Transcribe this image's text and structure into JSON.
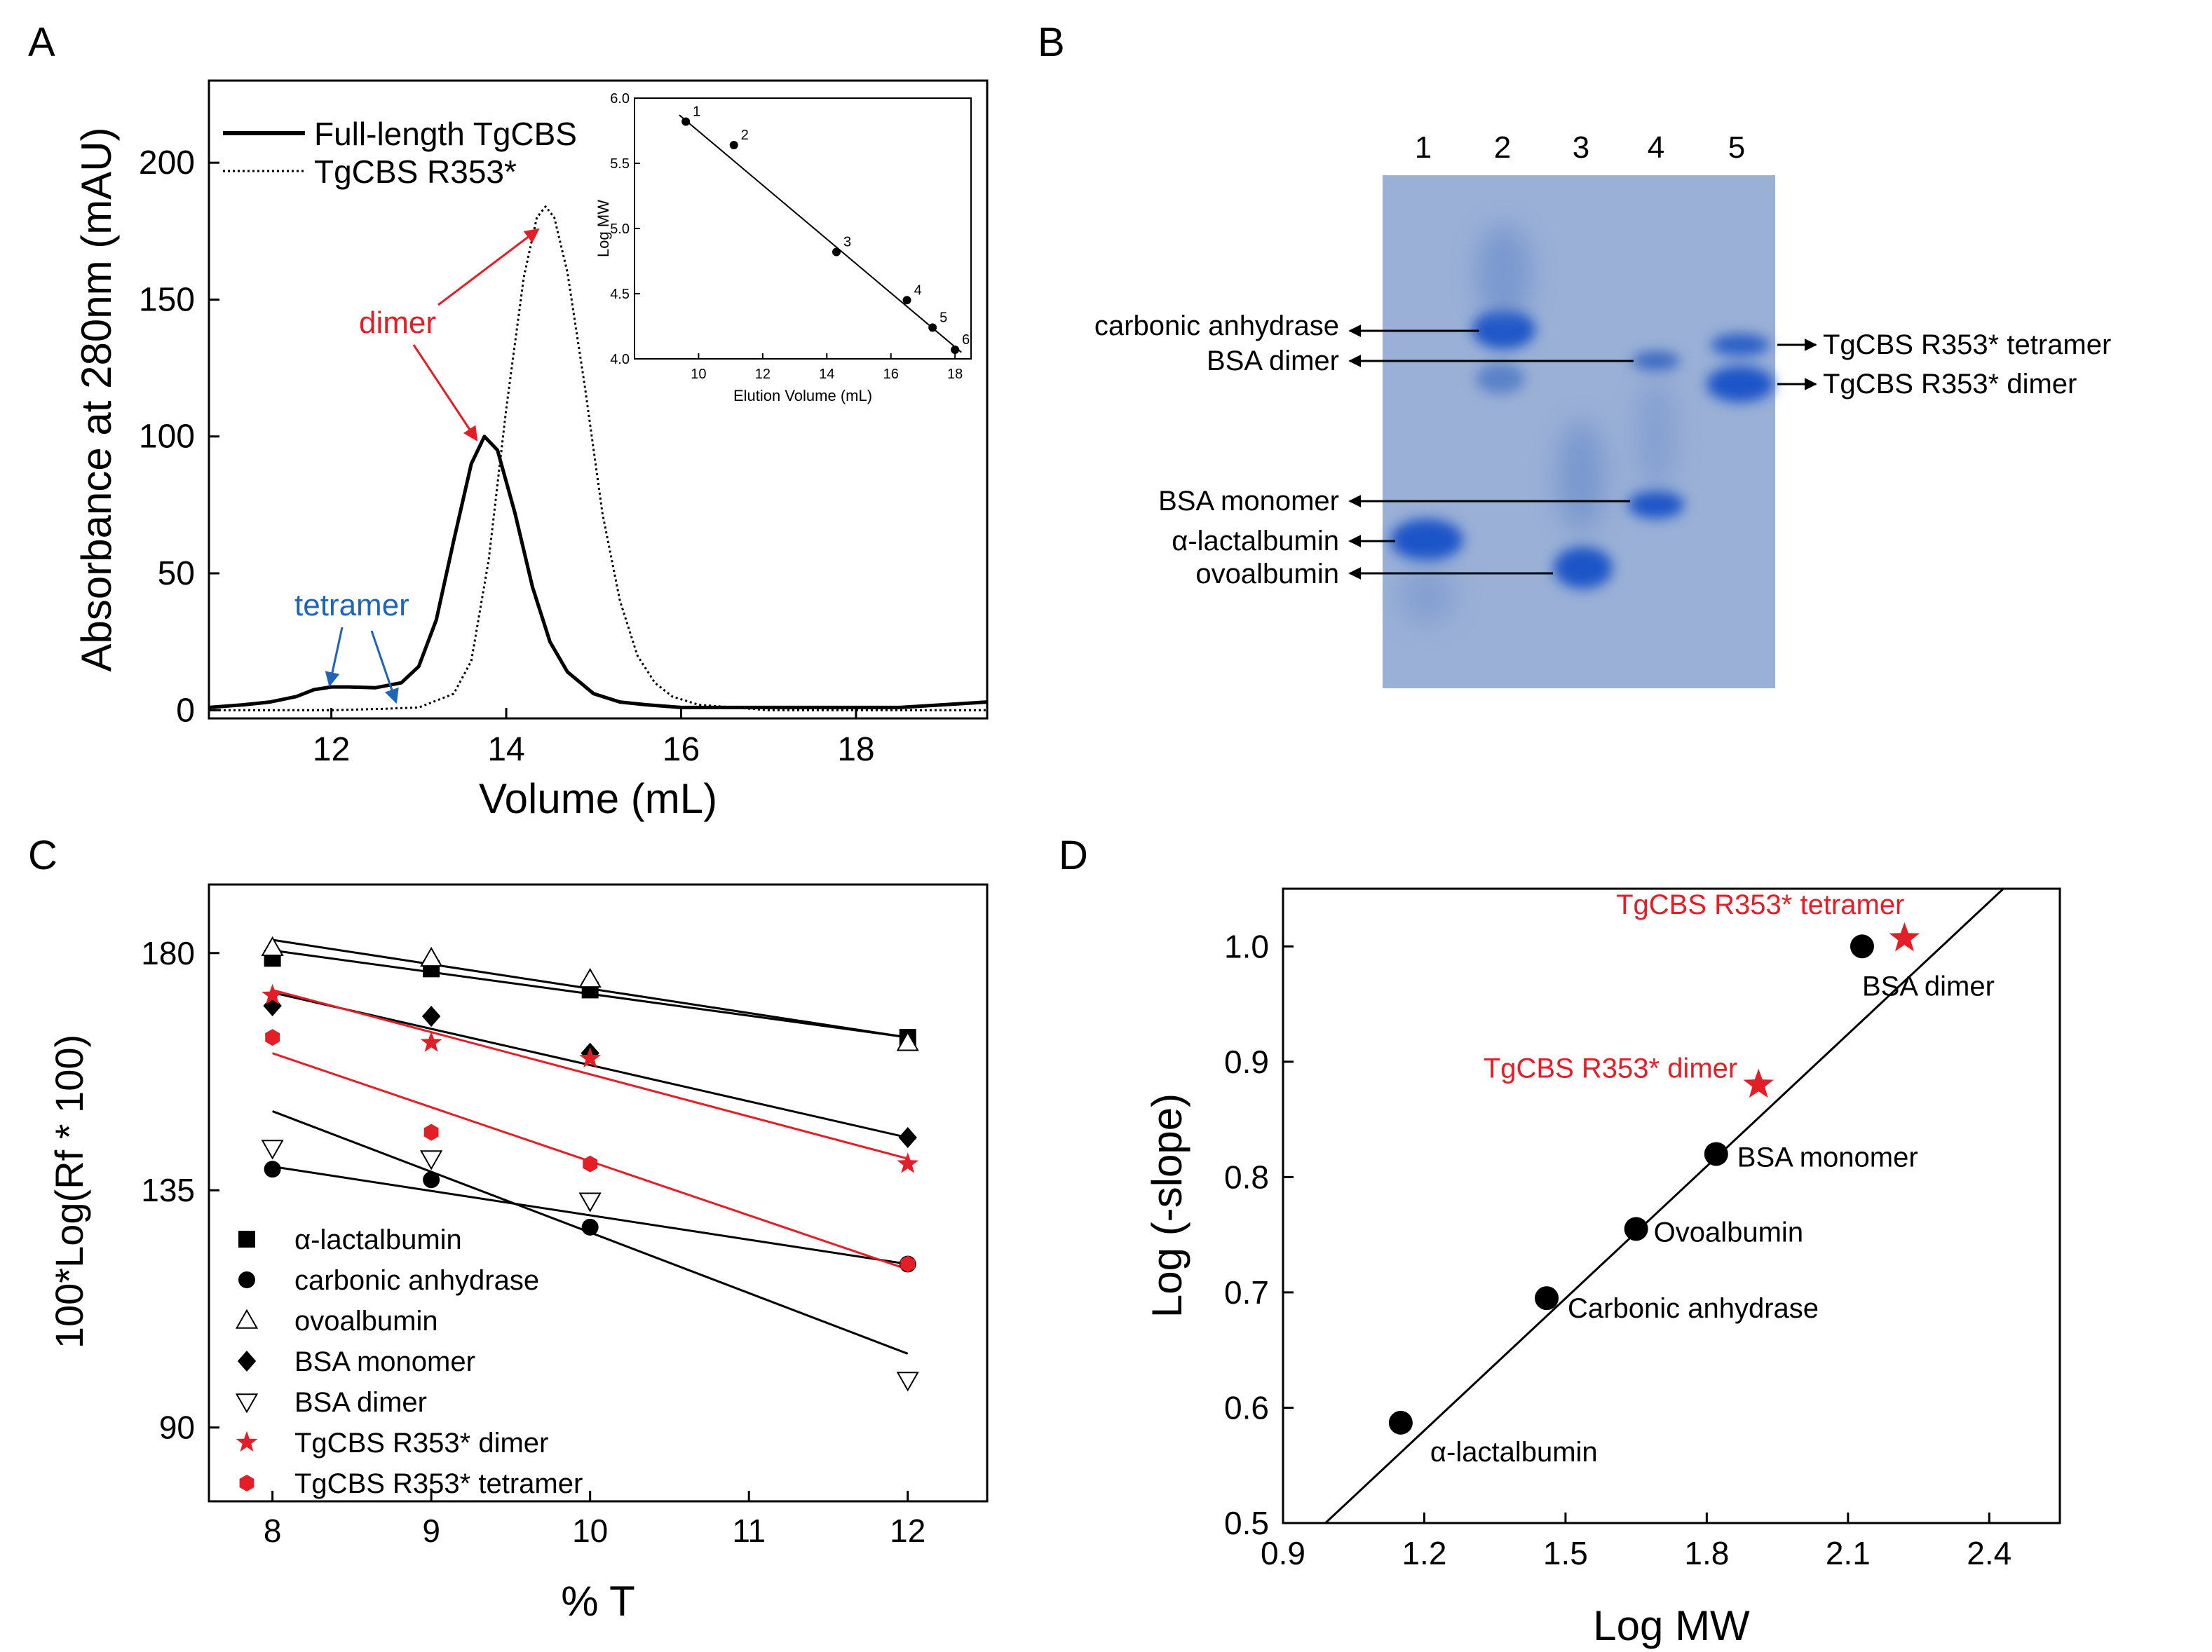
{
  "panels": {
    "A": "A",
    "B": "B",
    "C": "C",
    "D": "D"
  },
  "colors": {
    "red": "#e41e26",
    "blue": "#1e64b8",
    "gel_bg": "#9ab0d6",
    "band": "#1a55c8"
  },
  "chart_data": [
    {
      "panel": "A",
      "type": "line",
      "xlabel": "Volume (mL)",
      "ylabel": "Absorbance at 280nm (mAU)",
      "xlim": [
        10.6,
        19.5
      ],
      "ylim": [
        -3,
        230
      ],
      "xticks": [
        12,
        14,
        16,
        18
      ],
      "yticks": [
        0,
        50,
        100,
        150,
        200
      ],
      "legend_position": "top-left",
      "series": [
        {
          "name": "Full-length TgCBS",
          "style": "solid",
          "x": [
            10.6,
            11.0,
            11.3,
            11.6,
            11.8,
            12.0,
            12.2,
            12.5,
            12.8,
            13.0,
            13.2,
            13.4,
            13.6,
            13.75,
            13.9,
            14.1,
            14.3,
            14.5,
            14.7,
            15.0,
            15.3,
            15.6,
            16.0,
            16.5,
            17.0,
            17.5,
            18.0,
            18.5,
            19.0,
            19.5
          ],
          "y": [
            1,
            2,
            3,
            5,
            7.5,
            8.5,
            8.5,
            8.2,
            10,
            16,
            33,
            62,
            90,
            100,
            95,
            72,
            45,
            25,
            14,
            6,
            3,
            2,
            1,
            1,
            1,
            1,
            1,
            1,
            2,
            3
          ]
        },
        {
          "name": "TgCBS R353*",
          "style": "dotted",
          "x": [
            10.6,
            12.0,
            12.6,
            13.0,
            13.4,
            13.6,
            13.8,
            14.0,
            14.2,
            14.35,
            14.45,
            14.55,
            14.7,
            14.9,
            15.1,
            15.3,
            15.5,
            15.7,
            15.9,
            16.2,
            16.6,
            17.0,
            18.0,
            19.5
          ],
          "y": [
            0,
            0,
            0.5,
            1,
            6,
            18,
            55,
            110,
            158,
            180,
            184,
            180,
            160,
            118,
            72,
            40,
            20,
            10,
            5,
            2,
            1,
            0,
            0,
            0
          ]
        }
      ],
      "annotations": {
        "dimer": "dimer",
        "tetramer": "tetramer"
      },
      "inset": {
        "type": "scatter",
        "xlabel": "Elution Volume (mL)",
        "ylabel": "Log MW",
        "xlim": [
          8,
          18.5
        ],
        "ylim": [
          4.0,
          6.0
        ],
        "xticks": [
          10,
          12,
          14,
          16,
          18
        ],
        "yticks": [
          "4.0",
          "4.5",
          "5.0",
          "5.5",
          "6.0"
        ],
        "points": [
          {
            "label": "1",
            "x": 9.6,
            "y": 5.82
          },
          {
            "label": "2",
            "x": 11.1,
            "y": 5.64
          },
          {
            "label": "3",
            "x": 14.3,
            "y": 4.82
          },
          {
            "label": "4",
            "x": 16.5,
            "y": 4.45
          },
          {
            "label": "5",
            "x": 17.3,
            "y": 4.24
          },
          {
            "label": "6",
            "x": 18.0,
            "y": 4.07
          }
        ],
        "fit": {
          "x": [
            9.4,
            18.2
          ],
          "y": [
            5.87,
            4.05
          ]
        }
      }
    },
    {
      "panel": "C",
      "type": "scatter",
      "xlabel": "% T",
      "ylabel": "100*Log(Rf * 100)",
      "xlim": [
        7.6,
        12.5
      ],
      "ylim": [
        76,
        193
      ],
      "xticks": [
        8,
        9,
        10,
        11,
        12
      ],
      "yticks": [
        90,
        135,
        180
      ],
      "legend_position": "bottom-left",
      "series": [
        {
          "name": "α-lactalbumin",
          "marker": "square",
          "color": "black",
          "x": [
            8,
            9,
            10,
            12
          ],
          "y": [
            179,
            177,
            173,
            164
          ],
          "fit": [
            [
              8,
              180.5
            ],
            [
              12,
              164
            ]
          ]
        },
        {
          "name": "carbonic anhydrase",
          "marker": "circle",
          "color": "black",
          "x": [
            8,
            9,
            10,
            12
          ],
          "y": [
            139,
            137,
            128,
            121
          ],
          "fit": [
            [
              8,
              139.5
            ],
            [
              12,
              121
            ]
          ]
        },
        {
          "name": "ovoalbumin",
          "marker": "triangle-up",
          "color": "black",
          "x": [
            8,
            9,
            10,
            12
          ],
          "y": [
            181,
            179,
            175,
            163
          ],
          "fit": [
            [
              8,
              182.5
            ],
            [
              12,
              164
            ]
          ]
        },
        {
          "name": "BSA monomer",
          "marker": "diamond",
          "color": "black",
          "x": [
            8,
            9,
            10,
            12
          ],
          "y": [
            170,
            168,
            161,
            145
          ],
          "fit": [
            [
              8,
              172.5
            ],
            [
              12,
              145
            ]
          ]
        },
        {
          "name": "BSA dimer",
          "marker": "triangle-down",
          "color": "black",
          "x": [
            8,
            9,
            10,
            12
          ],
          "y": [
            143,
            141,
            133,
            99
          ],
          "fit": [
            [
              8,
              150
            ],
            [
              12,
              104
            ]
          ]
        },
        {
          "name": "TgCBS R353* dimer",
          "marker": "star",
          "color": "red",
          "x": [
            8,
            9,
            10,
            12
          ],
          "y": [
            172,
            163,
            160,
            140
          ],
          "fit": [
            [
              8,
              173
            ],
            [
              12,
              141
            ]
          ]
        },
        {
          "name": "TgCBS R353* tetramer",
          "marker": "hexagon",
          "color": "red",
          "x": [
            8,
            9,
            10,
            12
          ],
          "y": [
            164,
            146,
            140,
            121
          ],
          "fit": [
            [
              8,
              161
            ],
            [
              12,
              120
            ]
          ]
        }
      ]
    },
    {
      "panel": "D",
      "type": "scatter",
      "xlabel": "Log MW",
      "ylabel": "Log (-slope)",
      "xlim": [
        0.9,
        2.55
      ],
      "ylim": [
        0.5,
        1.05
      ],
      "xticks": [
        "0.9",
        "1.2",
        "1.5",
        "1.8",
        "2.1",
        "2.4"
      ],
      "yticks": [
        "0.5",
        "0.6",
        "0.7",
        "0.8",
        "0.9",
        "1.0"
      ],
      "fit": {
        "x": [
          0.99,
          2.43
        ],
        "y": [
          0.5,
          1.05
        ]
      },
      "points": [
        {
          "label": "α-lactalbumin",
          "x": 1.15,
          "y": 0.587,
          "marker": "circle",
          "color": "black"
        },
        {
          "label": "Carbonic anhydrase",
          "x": 1.46,
          "y": 0.695,
          "marker": "circle",
          "color": "black"
        },
        {
          "label": "Ovoalbumin",
          "x": 1.65,
          "y": 0.755,
          "marker": "circle",
          "color": "black"
        },
        {
          "label": "BSA monomer",
          "x": 1.82,
          "y": 0.82,
          "marker": "circle",
          "color": "black"
        },
        {
          "label": "BSA dimer",
          "x": 2.13,
          "y": 1.0,
          "marker": "circle",
          "color": "black"
        },
        {
          "label": "TgCBS R353* dimer",
          "x": 1.91,
          "y": 0.88,
          "marker": "star",
          "color": "red"
        },
        {
          "label": "TgCBS R353* tetramer",
          "x": 2.22,
          "y": 1.007,
          "marker": "star",
          "color": "red"
        }
      ]
    }
  ],
  "gel": {
    "lanes": [
      "1",
      "2",
      "3",
      "4",
      "5"
    ],
    "left_labels": [
      "carbonic anhydrase",
      "BSA dimer",
      "BSA monomer",
      "α-lactalbumin",
      "ovoalbumin"
    ],
    "right_labels": [
      "TgCBS R353* tetramer",
      "TgCBS R353* dimer"
    ]
  }
}
